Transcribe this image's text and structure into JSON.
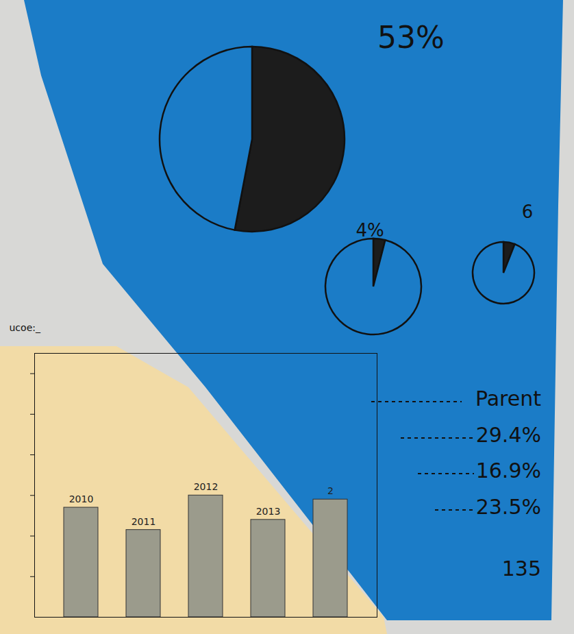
{
  "chart_data": [
    {
      "type": "pie",
      "title": "53%",
      "values": [
        53,
        47
      ],
      "colors": [
        "#1c1c1c",
        "#1b7cc7"
      ]
    },
    {
      "type": "pie",
      "title": "4%",
      "values": [
        4,
        96
      ],
      "colors": [
        "#1c1c1c",
        "#1b7cc7"
      ]
    },
    {
      "type": "pie",
      "title": "6",
      "values": [
        6,
        94
      ],
      "colors": [
        "#1c1c1c",
        "#1b7cc7"
      ]
    },
    {
      "type": "bar",
      "ylabel": "ucoe:_",
      "categories": [
        "2010",
        "2011",
        "2012",
        "2013",
        "2"
      ],
      "values": [
        2.7,
        2.15,
        3.0,
        2.4,
        2.9
      ],
      "color": "#9b9b8c",
      "ylim": [
        0,
        6.5
      ],
      "yticks": [
        1,
        2,
        3,
        4,
        5,
        6
      ],
      "tick_labels": false
    }
  ],
  "text_list": {
    "heading": "Parent",
    "items": [
      "29.4%",
      "16.9%",
      "23.5%",
      "135"
    ]
  }
}
